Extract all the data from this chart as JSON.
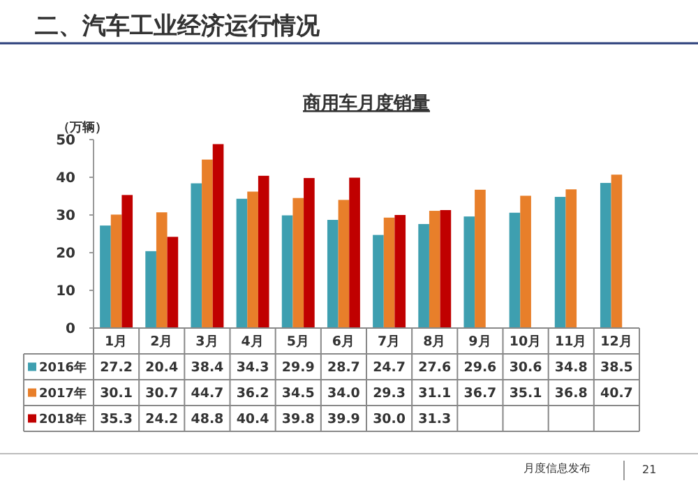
{
  "chart_data": {
    "type": "bar",
    "title": "商用车月度销量",
    "ylabel": "（万辆）",
    "categories": [
      "1月",
      "2月",
      "3月",
      "4月",
      "5月",
      "6月",
      "7月",
      "8月",
      "9月",
      "10月",
      "11月",
      "12月"
    ],
    "series": [
      {
        "name": "2016年",
        "color": "#3e9fb0",
        "values": [
          27.2,
          20.4,
          38.4,
          34.3,
          29.9,
          28.7,
          24.7,
          27.6,
          29.6,
          30.6,
          34.8,
          38.5
        ],
        "value_labels": [
          "27.2",
          "20.4",
          "38.4",
          "34.3",
          "29.9",
          "28.7",
          "24.7",
          "27.6",
          "29.6",
          "30.6",
          "34.8",
          "38.5"
        ]
      },
      {
        "name": "2017年",
        "color": "#e87f2a",
        "values": [
          30.1,
          30.7,
          44.7,
          36.2,
          34.5,
          34.0,
          29.3,
          31.1,
          36.7,
          35.1,
          36.8,
          40.7
        ],
        "value_labels": [
          "30.1",
          "30.7",
          "44.7",
          "36.2",
          "34.5",
          "34.0",
          "29.3",
          "31.1",
          "36.7",
          "35.1",
          "36.8",
          "40.7"
        ]
      },
      {
        "name": "2018年",
        "color": "#c00000",
        "values": [
          35.3,
          24.2,
          48.8,
          40.4,
          39.8,
          39.9,
          30.0,
          31.3,
          null,
          null,
          null,
          null
        ],
        "value_labels": [
          "35.3",
          "24.2",
          "48.8",
          "40.4",
          "39.8",
          "39.9",
          "30.0",
          "31.3",
          null,
          null,
          null,
          null
        ]
      }
    ],
    "ylim": [
      0,
      50
    ],
    "yticks": [
      0,
      10,
      20,
      30,
      40,
      50
    ],
    "grid": false,
    "legend": "bottom",
    "annotations": [
      "二、汽车工业经济运行情况",
      "月度信息发布",
      "21"
    ]
  }
}
